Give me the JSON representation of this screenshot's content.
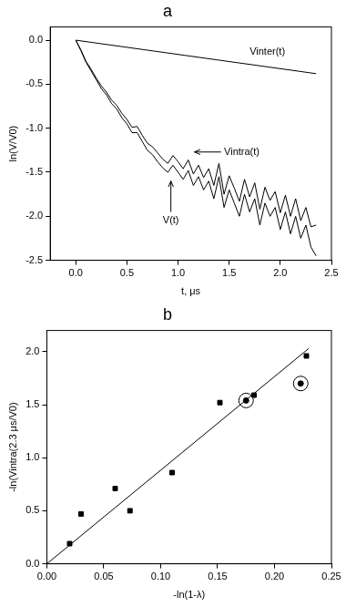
{
  "chart_data": [
    {
      "type": "line",
      "title": "a",
      "x_label": "t, μs",
      "y_label": "ln(V/V0)",
      "xlim": [
        -0.25,
        2.5
      ],
      "xticks": [
        {
          "value": 0,
          "label": "0.0"
        },
        0.5,
        {
          "value": 1,
          "label": "1.0"
        },
        1.5,
        {
          "value": 2,
          "label": "2.0"
        },
        2.5
      ],
      "ylim": [
        -2.5,
        0.15
      ],
      "yticks": [
        {
          "value": -2.5,
          "label": "-2.5"
        },
        {
          "value": -2,
          "label": "-2.0"
        },
        -1.5,
        {
          "value": -1,
          "label": "-1.0"
        },
        -0.5,
        {
          "value": 0,
          "label": "0.0"
        }
      ],
      "grid": false,
      "series": [
        {
          "name": "Vinter(t)",
          "color": "#000000",
          "line_style": "solid",
          "x": [
            0,
            2.35
          ],
          "values": [
            0,
            -0.38
          ]
        },
        {
          "name": "Vintra(t)",
          "color": "#000000",
          "line_style": "solid",
          "x": [
            0,
            0.05,
            0.1,
            0.15,
            0.2,
            0.25,
            0.3,
            0.35,
            0.4,
            0.45,
            0.5,
            0.55,
            0.6,
            0.65,
            0.7,
            0.75,
            0.8,
            0.85,
            0.9,
            0.95,
            1.0,
            1.05,
            1.1,
            1.15,
            1.2,
            1.25,
            1.3,
            1.35,
            1.4,
            1.45,
            1.5,
            1.55,
            1.6,
            1.65,
            1.7,
            1.75,
            1.8,
            1.85,
            1.9,
            1.95,
            2.0,
            2.05,
            2.1,
            2.15,
            2.2,
            2.25,
            2.3,
            2.35
          ],
          "values": [
            0,
            -0.11,
            -0.24,
            -0.33,
            -0.43,
            -0.52,
            -0.59,
            -0.68,
            -0.74,
            -0.83,
            -0.9,
            -0.99,
            -0.98,
            -1.08,
            -1.17,
            -1.21,
            -1.28,
            -1.35,
            -1.4,
            -1.31,
            -1.38,
            -1.46,
            -1.36,
            -1.52,
            -1.42,
            -1.56,
            -1.46,
            -1.65,
            -1.4,
            -1.75,
            -1.54,
            -1.68,
            -1.83,
            -1.58,
            -1.78,
            -1.62,
            -1.92,
            -1.67,
            -1.82,
            -1.72,
            -1.96,
            -1.76,
            -2.0,
            -1.8,
            -2.05,
            -1.9,
            -2.12,
            -2.1
          ]
        },
        {
          "name": "V(t)",
          "color": "#000000",
          "line_style": "solid",
          "x": [
            0,
            0.05,
            0.1,
            0.15,
            0.2,
            0.25,
            0.3,
            0.35,
            0.4,
            0.45,
            0.5,
            0.55,
            0.6,
            0.65,
            0.7,
            0.75,
            0.8,
            0.85,
            0.9,
            0.95,
            1.0,
            1.05,
            1.1,
            1.15,
            1.2,
            1.25,
            1.3,
            1.35,
            1.4,
            1.45,
            1.5,
            1.55,
            1.6,
            1.65,
            1.7,
            1.75,
            1.8,
            1.85,
            1.9,
            1.95,
            2.0,
            2.05,
            2.1,
            2.15,
            2.2,
            2.25,
            2.3,
            2.35
          ],
          "values": [
            0,
            -0.12,
            -0.25,
            -0.35,
            -0.45,
            -0.55,
            -0.62,
            -0.72,
            -0.78,
            -0.88,
            -0.95,
            -1.05,
            -1.05,
            -1.15,
            -1.25,
            -1.3,
            -1.38,
            -1.45,
            -1.5,
            -1.42,
            -1.5,
            -1.58,
            -1.48,
            -1.65,
            -1.55,
            -1.7,
            -1.6,
            -1.8,
            -1.55,
            -1.9,
            -1.7,
            -1.85,
            -2.0,
            -1.75,
            -1.95,
            -1.8,
            -2.1,
            -1.85,
            -2.0,
            -1.9,
            -2.15,
            -1.95,
            -2.2,
            -2.0,
            -2.25,
            -2.1,
            -2.35,
            -2.45
          ]
        }
      ]
    },
    {
      "type": "scatter",
      "title": "b",
      "x_label": "-ln(1-λ)",
      "y_label": "-ln(Vintra(2.3 μs/V0)",
      "xlim": [
        0,
        0.25
      ],
      "xticks": [
        {
          "value": 0,
          "label": "0.00"
        },
        0.05,
        {
          "value": 0.1,
          "label": "0.10"
        },
        0.15,
        {
          "value": 0.2,
          "label": "0.20"
        },
        0.25
      ],
      "ylim": [
        0,
        2.2
      ],
      "yticks": [
        {
          "value": 0,
          "label": "0.0"
        },
        0.5,
        {
          "value": 1,
          "label": "1.0"
        },
        1.5,
        {
          "value": 2,
          "label": "2.0"
        }
      ],
      "grid": false,
      "series": [
        {
          "type": "scatter",
          "marker": "square",
          "color": "#000000",
          "x": [
            0.02,
            0.03,
            0.06,
            0.073,
            0.11,
            0.152,
            0.182,
            0.228
          ],
          "values": [
            0.19,
            0.47,
            0.71,
            0.5,
            0.86,
            1.52,
            1.59,
            1.96
          ]
        },
        {
          "type": "scatter",
          "marker": "circled",
          "color": "#000000",
          "x": [
            0.175,
            0.223
          ],
          "values": [
            1.54,
            1.7
          ]
        },
        {
          "type": "line",
          "line_style": "solid",
          "color": "#000000",
          "x": [
            0,
            0.23
          ],
          "values": [
            0,
            2.03
          ]
        }
      ]
    }
  ]
}
